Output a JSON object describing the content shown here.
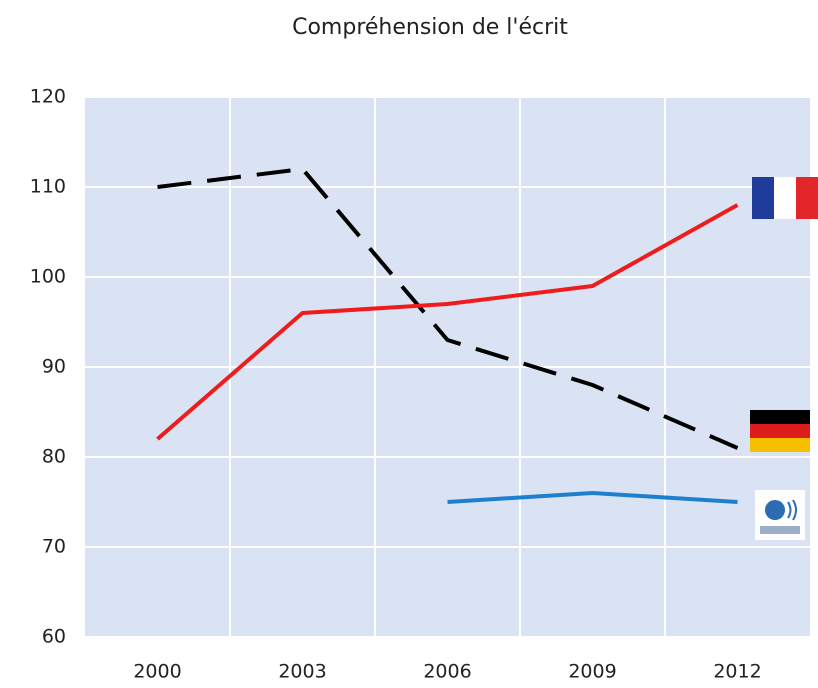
{
  "chart_data": {
    "type": "line",
    "title": "Compréhension de l'écrit",
    "categories": [
      "2000",
      "2003",
      "2006",
      "2009",
      "2012"
    ],
    "series": [
      {
        "color": "#000000",
        "dashed": true,
        "values": [
          110,
          112,
          93,
          88,
          81
        ]
      },
      {
        "color": "#ee1c1c",
        "dashed": false,
        "values": [
          82,
          96,
          97,
          99,
          108
        ]
      },
      {
        "color": "#1f7fcf",
        "dashed": false,
        "values": [
          null,
          null,
          75,
          76,
          75
        ]
      }
    ],
    "ylim": [
      60,
      120
    ],
    "yticks": [
      60,
      70,
      80,
      90,
      100,
      110,
      120
    ],
    "grid": true
  }
}
